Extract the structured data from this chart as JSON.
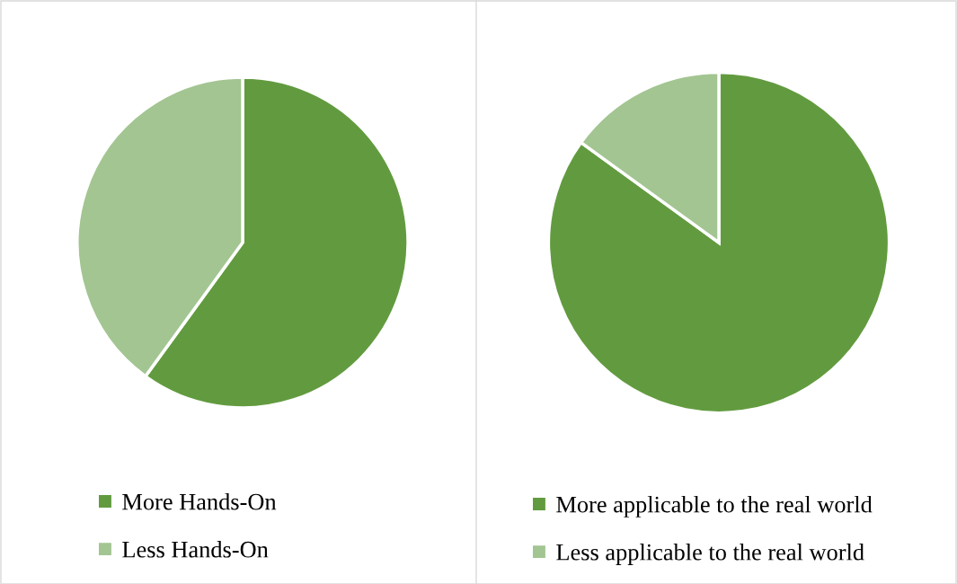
{
  "chart_data": [
    {
      "type": "pie",
      "categories": [
        "More Hands-On",
        "Less Hands-On"
      ],
      "values": [
        60,
        40
      ],
      "colors": [
        "#629b3f",
        "#a3c592"
      ],
      "legend": "bottom"
    },
    {
      "type": "pie",
      "categories": [
        "More applicable to the real world",
        "Less applicable to the real world"
      ],
      "values": [
        85,
        15
      ],
      "colors": [
        "#629b3f",
        "#a3c592"
      ],
      "legend": "bottom"
    }
  ]
}
